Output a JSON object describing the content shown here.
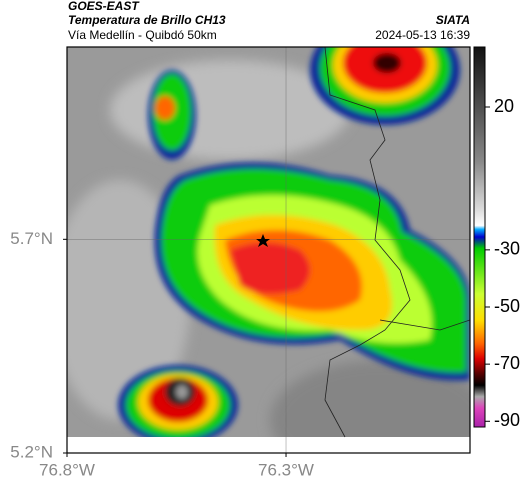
{
  "header": {
    "title": "GOES-EAST",
    "subtitle": "Temperatura de Brillo CH13",
    "route": "Vía Medellín - Quibdó 50km",
    "source": "SIATA",
    "datetime": "2024-05-13 16:39"
  },
  "map": {
    "xlim": [
      -76.8,
      -75.88
    ],
    "ylim": [
      5.2,
      6.15
    ],
    "xticks": [
      {
        "value": -76.8,
        "label": "76.8°W"
      },
      {
        "value": -76.3,
        "label": "76.3°W"
      }
    ],
    "yticks": [
      {
        "value": 5.2,
        "label": "5.2°N"
      },
      {
        "value": 5.7,
        "label": "5.7°N"
      }
    ],
    "grid": true
  },
  "colorbar": {
    "clim": [
      -92,
      41
    ],
    "ticks": [
      20,
      -30,
      -50,
      -70,
      -90
    ]
  }
}
